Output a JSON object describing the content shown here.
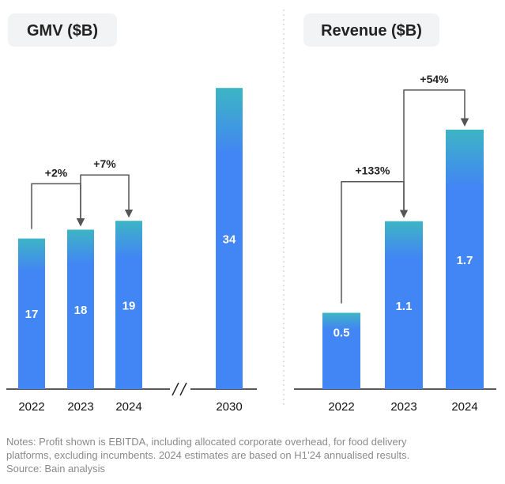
{
  "chart_data": [
    {
      "type": "bar",
      "title": "GMV ($B)",
      "categories": [
        "2022",
        "2023",
        "2024",
        "2030"
      ],
      "values": [
        17,
        18,
        19,
        34
      ],
      "value_labels": [
        "17",
        "18",
        "19",
        "34"
      ],
      "ylim": [
        0,
        36
      ],
      "axis_break": "between 2024 and 2030",
      "annotations": [
        {
          "from": "2022",
          "to": "2023",
          "label": "+2%"
        },
        {
          "from": "2023",
          "to": "2024",
          "label": "+7%"
        }
      ]
    },
    {
      "type": "bar",
      "title": "Revenue ($B)",
      "categories": [
        "2022",
        "2023",
        "2024"
      ],
      "values": [
        0.5,
        1.1,
        1.7
      ],
      "value_labels": [
        "0.5",
        "1.1",
        "1.7"
      ],
      "ylim": [
        0,
        2.2
      ],
      "annotations": [
        {
          "from": "2022",
          "to": "2023",
          "label": "+133%"
        },
        {
          "from": "2023",
          "to": "2024",
          "label": "+54%"
        }
      ]
    }
  ],
  "colors": {
    "bar_top": "#3db5c4",
    "bar_bottom": "#4285f4",
    "pill_bg": "#f1f3f4",
    "axis": "#222222",
    "divider": "#cccccc"
  },
  "footnote": {
    "line1": "Notes: Profit shown is EBITDA, including allocated corporate overhead, for food delivery",
    "line2": "platforms, excluding incumbents. 2024 estimates are based on H1’24 annualised results.",
    "line3": "Source: Bain analysis"
  }
}
